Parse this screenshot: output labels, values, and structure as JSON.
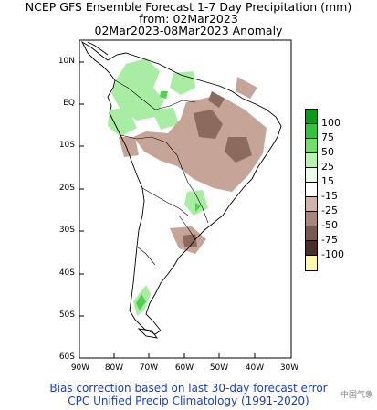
{
  "title": {
    "line1": "NCEP GFS Ensemble Forecast 1-7 Day Precipitation (mm)",
    "line2": "from: 02Mar2023",
    "line3": "02Mar2023-08Mar2023 Anomaly"
  },
  "axes": {
    "lat_labels": [
      "10N",
      "EQ",
      "10S",
      "20S",
      "30S",
      "40S",
      "50S",
      "60S"
    ],
    "lon_labels": [
      "80W",
      "70W",
      "60W",
      "50W",
      "40W",
      "30W"
    ],
    "corner_label": "90W"
  },
  "legend": {
    "items": [
      {
        "label": "100",
        "color": "#0c9a1a"
      },
      {
        "label": "75",
        "color": "#2fc63a"
      },
      {
        "label": "50",
        "color": "#6ee06a"
      },
      {
        "label": "25",
        "color": "#b6f2b0"
      },
      {
        "label": "15",
        "color": "#e8fce6"
      },
      {
        "label": "-15",
        "color": "#ffffff"
      },
      {
        "label": "-25",
        "color": "#d2b3a7"
      },
      {
        "label": "-50",
        "color": "#aa8678"
      },
      {
        "label": "-75",
        "color": "#7a5a4e"
      },
      {
        "label": "-100",
        "color": "#4a3028"
      }
    ],
    "extra_color": "#fffaaa"
  },
  "footer": {
    "line1": "Bias correction based on last 30-day forecast error",
    "line2": "CPC Unified Precip Climatology (1991-2020)"
  },
  "watermark": "中国气象"
}
